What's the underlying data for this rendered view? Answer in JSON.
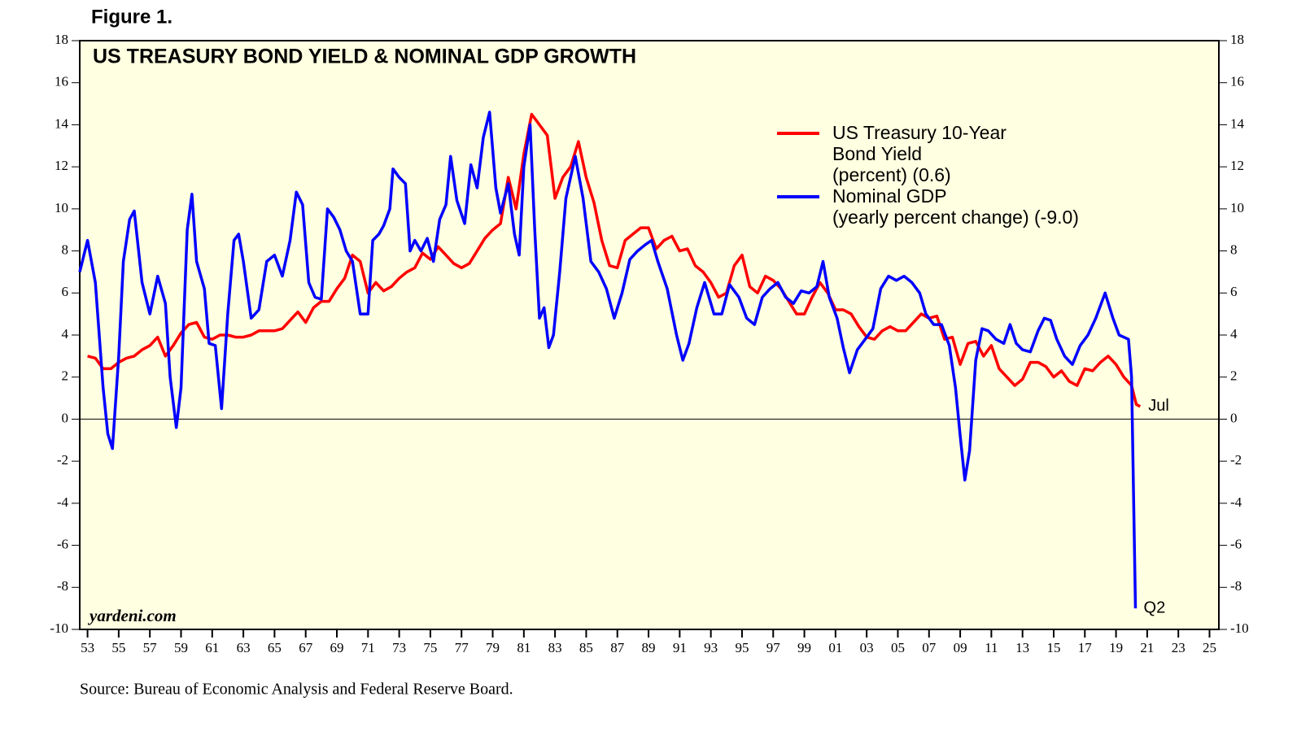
{
  "chart_data": {
    "type": "line",
    "figure_label": "Figure 1.",
    "title": "US TREASURY BOND YIELD & NOMINAL GDP GROWTH",
    "watermark": "yardeni.com",
    "source": "Source: Bureau of Economic Analysis and Federal Reserve Board.",
    "xlim": [
      1952.5,
      2025.6
    ],
    "ylim": [
      -10,
      18
    ],
    "yticks": [
      -10,
      -8,
      -6,
      -4,
      -2,
      0,
      2,
      4,
      6,
      8,
      10,
      12,
      14,
      16,
      18
    ],
    "xticks": [
      {
        "value": 1953,
        "label": "53"
      },
      {
        "value": 1955,
        "label": "55"
      },
      {
        "value": 1957,
        "label": "57"
      },
      {
        "value": 1959,
        "label": "59"
      },
      {
        "value": 1961,
        "label": "61"
      },
      {
        "value": 1963,
        "label": "63"
      },
      {
        "value": 1965,
        "label": "65"
      },
      {
        "value": 1967,
        "label": "67"
      },
      {
        "value": 1969,
        "label": "69"
      },
      {
        "value": 1971,
        "label": "71"
      },
      {
        "value": 1973,
        "label": "73"
      },
      {
        "value": 1975,
        "label": "75"
      },
      {
        "value": 1977,
        "label": "77"
      },
      {
        "value": 1979,
        "label": "79"
      },
      {
        "value": 1981,
        "label": "81"
      },
      {
        "value": 1983,
        "label": "83"
      },
      {
        "value": 1985,
        "label": "85"
      },
      {
        "value": 1987,
        "label": "87"
      },
      {
        "value": 1989,
        "label": "89"
      },
      {
        "value": 1991,
        "label": "91"
      },
      {
        "value": 1993,
        "label": "93"
      },
      {
        "value": 1995,
        "label": "95"
      },
      {
        "value": 1997,
        "label": "97"
      },
      {
        "value": 1999,
        "label": "99"
      },
      {
        "value": 2001,
        "label": "01"
      },
      {
        "value": 2003,
        "label": "03"
      },
      {
        "value": 2005,
        "label": "05"
      },
      {
        "value": 2007,
        "label": "07"
      },
      {
        "value": 2009,
        "label": "09"
      },
      {
        "value": 2011,
        "label": "11"
      },
      {
        "value": 2013,
        "label": "13"
      },
      {
        "value": 2015,
        "label": "15"
      },
      {
        "value": 2017,
        "label": "17"
      },
      {
        "value": 2019,
        "label": "19"
      },
      {
        "value": 2021,
        "label": "21"
      },
      {
        "value": 2023,
        "label": "23"
      },
      {
        "value": 2025,
        "label": "25"
      }
    ],
    "series": [
      {
        "name": "US Treasury 10-Year\nBond Yield\n(percent) (0.6)",
        "color": "#ff0000",
        "end_label": "Jul",
        "x": [
          1953,
          1953.5,
          1954,
          1954.5,
          1955,
          1955.5,
          1956,
          1956.5,
          1957,
          1957.5,
          1958,
          1958.5,
          1959,
          1959.5,
          1960,
          1960.5,
          1961,
          1961.5,
          1962,
          1962.5,
          1963,
          1963.5,
          1964,
          1964.5,
          1965,
          1965.5,
          1966,
          1966.5,
          1967,
          1967.5,
          1968,
          1968.5,
          1969,
          1969.5,
          1970,
          1970.5,
          1971,
          1971.5,
          1972,
          1972.5,
          1973,
          1973.5,
          1974,
          1974.5,
          1975,
          1975.5,
          1976,
          1976.5,
          1977,
          1977.5,
          1978,
          1978.5,
          1979,
          1979.5,
          1980,
          1980.5,
          1981,
          1981.5,
          1982,
          1982.5,
          1983,
          1983.5,
          1984,
          1984.5,
          1985,
          1985.5,
          1986,
          1986.5,
          1987,
          1987.5,
          1988,
          1988.5,
          1989,
          1989.5,
          1990,
          1990.5,
          1991,
          1991.5,
          1992,
          1992.5,
          1993,
          1993.5,
          1994,
          1994.5,
          1995,
          1995.5,
          1996,
          1996.5,
          1997,
          1997.5,
          1998,
          1998.5,
          1999,
          1999.5,
          2000,
          2000.5,
          2001,
          2001.5,
          2002,
          2002.5,
          2003,
          2003.5,
          2004,
          2004.5,
          2005,
          2005.5,
          2006,
          2006.5,
          2007,
          2007.5,
          2008,
          2008.5,
          2009,
          2009.5,
          2010,
          2010.5,
          2011,
          2011.5,
          2012,
          2012.5,
          2013,
          2013.5,
          2014,
          2014.5,
          2015,
          2015.5,
          2016,
          2016.5,
          2017,
          2017.5,
          2018,
          2018.5,
          2019,
          2019.5,
          2020,
          2020.3,
          2020.55
        ],
        "values": [
          3.0,
          2.9,
          2.4,
          2.4,
          2.7,
          2.9,
          3.0,
          3.3,
          3.5,
          3.9,
          3.0,
          3.5,
          4.1,
          4.5,
          4.6,
          3.9,
          3.8,
          4.0,
          4.0,
          3.9,
          3.9,
          4.0,
          4.2,
          4.2,
          4.2,
          4.3,
          4.7,
          5.1,
          4.6,
          5.3,
          5.6,
          5.6,
          6.2,
          6.7,
          7.8,
          7.5,
          6.0,
          6.5,
          6.1,
          6.3,
          6.7,
          7.0,
          7.2,
          7.9,
          7.6,
          8.2,
          7.8,
          7.4,
          7.2,
          7.4,
          8.0,
          8.6,
          9.0,
          9.3,
          11.5,
          10.0,
          12.6,
          14.5,
          14.0,
          13.5,
          10.5,
          11.5,
          12.0,
          13.2,
          11.5,
          10.3,
          8.5,
          7.3,
          7.2,
          8.5,
          8.8,
          9.1,
          9.1,
          8.1,
          8.5,
          8.7,
          8.0,
          8.1,
          7.3,
          7.0,
          6.5,
          5.8,
          6.0,
          7.3,
          7.8,
          6.3,
          6.0,
          6.8,
          6.6,
          6.2,
          5.6,
          5.0,
          5.0,
          5.8,
          6.5,
          6.0,
          5.2,
          5.2,
          5.0,
          4.4,
          3.9,
          3.8,
          4.2,
          4.4,
          4.2,
          4.2,
          4.6,
          5.0,
          4.8,
          4.9,
          3.8,
          3.9,
          2.6,
          3.6,
          3.7,
          3.0,
          3.5,
          2.4,
          2.0,
          1.6,
          1.9,
          2.7,
          2.7,
          2.5,
          2.0,
          2.3,
          1.8,
          1.6,
          2.4,
          2.3,
          2.7,
          3.0,
          2.6,
          2.0,
          1.6,
          0.7,
          0.6
        ]
      },
      {
        "name": "Nominal GDP\n(yearly percent change) (-9.0)",
        "color": "#0000ff",
        "end_label": "Q2",
        "x": [
          1952.5,
          1953,
          1953.5,
          1954,
          1954.3,
          1954.6,
          1955,
          1955.3,
          1955.7,
          1956,
          1956.5,
          1957,
          1957.5,
          1958,
          1958.3,
          1958.7,
          1959,
          1959.4,
          1959.7,
          1960,
          1960.5,
          1960.8,
          1961.2,
          1961.6,
          1962,
          1962.4,
          1962.7,
          1963,
          1963.5,
          1964,
          1964.5,
          1965,
          1965.5,
          1966,
          1966.4,
          1966.8,
          1967.2,
          1967.6,
          1968,
          1968.4,
          1968.8,
          1969.2,
          1969.6,
          1970,
          1970.5,
          1971,
          1971.3,
          1971.7,
          1972,
          1972.4,
          1972.6,
          1973,
          1973.4,
          1973.7,
          1974,
          1974.4,
          1974.8,
          1975.2,
          1975.6,
          1976,
          1976.3,
          1976.7,
          1977.2,
          1977.6,
          1978,
          1978.4,
          1978.8,
          1979.2,
          1979.5,
          1980,
          1980.4,
          1980.7,
          1981,
          1981.4,
          1981.7,
          1982,
          1982.3,
          1982.6,
          1982.9,
          1983.3,
          1983.7,
          1984.3,
          1984.8,
          1985.3,
          1985.8,
          1986.3,
          1986.8,
          1987.3,
          1987.8,
          1988.3,
          1988.8,
          1989.2,
          1989.6,
          1990.2,
          1990.8,
          1991.2,
          1991.6,
          1992.1,
          1992.6,
          1993.2,
          1993.7,
          1994.2,
          1994.8,
          1995.3,
          1995.8,
          1996.3,
          1996.8,
          1997.3,
          1997.8,
          1998.3,
          1998.8,
          1999.3,
          1999.8,
          2000.2,
          2000.6,
          2001.1,
          2001.5,
          2001.9,
          2002.4,
          2002.9,
          2003.4,
          2003.9,
          2004.4,
          2004.9,
          2005.4,
          2005.9,
          2006.4,
          2006.8,
          2007.3,
          2007.8,
          2008.3,
          2008.7,
          2009,
          2009.3,
          2009.6,
          2010,
          2010.4,
          2010.8,
          2011.3,
          2011.8,
          2012.2,
          2012.6,
          2013,
          2013.5,
          2014,
          2014.4,
          2014.8,
          2015.2,
          2015.7,
          2016.2,
          2016.7,
          2017.2,
          2017.7,
          2018.3,
          2018.8,
          2019.2,
          2019.8,
          2020,
          2020.25
        ],
        "values": [
          7.0,
          8.5,
          6.5,
          1.5,
          -0.7,
          -1.4,
          3.0,
          7.5,
          9.5,
          9.9,
          6.5,
          5.0,
          6.8,
          5.5,
          2.0,
          -0.4,
          1.5,
          9.0,
          10.7,
          7.5,
          6.2,
          3.6,
          3.5,
          0.5,
          5.0,
          8.5,
          8.8,
          7.5,
          4.8,
          5.2,
          7.5,
          7.8,
          6.8,
          8.5,
          10.8,
          10.2,
          6.5,
          5.8,
          5.7,
          10.0,
          9.6,
          9.0,
          8.0,
          7.5,
          5.0,
          5.0,
          8.5,
          8.8,
          9.2,
          10.0,
          11.9,
          11.5,
          11.2,
          8.0,
          8.5,
          8.0,
          8.6,
          7.5,
          9.5,
          10.2,
          12.5,
          10.4,
          9.3,
          12.1,
          11.0,
          13.4,
          14.6,
          11.0,
          9.8,
          11.2,
          8.8,
          7.8,
          12.0,
          14.0,
          9.0,
          4.8,
          5.3,
          3.4,
          4.0,
          7.0,
          10.5,
          12.5,
          10.5,
          7.5,
          7.0,
          6.2,
          4.8,
          6.0,
          7.6,
          8.0,
          8.3,
          8.5,
          7.5,
          6.2,
          4.0,
          2.8,
          3.6,
          5.3,
          6.5,
          5.0,
          5.0,
          6.4,
          5.8,
          4.8,
          4.5,
          5.8,
          6.2,
          6.5,
          5.8,
          5.5,
          6.1,
          6.0,
          6.3,
          7.5,
          5.8,
          4.8,
          3.4,
          2.2,
          3.3,
          3.8,
          4.3,
          6.2,
          6.8,
          6.6,
          6.8,
          6.5,
          6.0,
          5.0,
          4.5,
          4.5,
          3.5,
          1.5,
          -0.8,
          -2.9,
          -1.5,
          2.8,
          4.3,
          4.2,
          3.8,
          3.6,
          4.5,
          3.6,
          3.3,
          3.2,
          4.2,
          4.8,
          4.7,
          3.8,
          3.0,
          2.6,
          3.5,
          4.0,
          4.8,
          6.0,
          4.8,
          4.0,
          3.8,
          2.0,
          -9.0
        ]
      }
    ]
  }
}
